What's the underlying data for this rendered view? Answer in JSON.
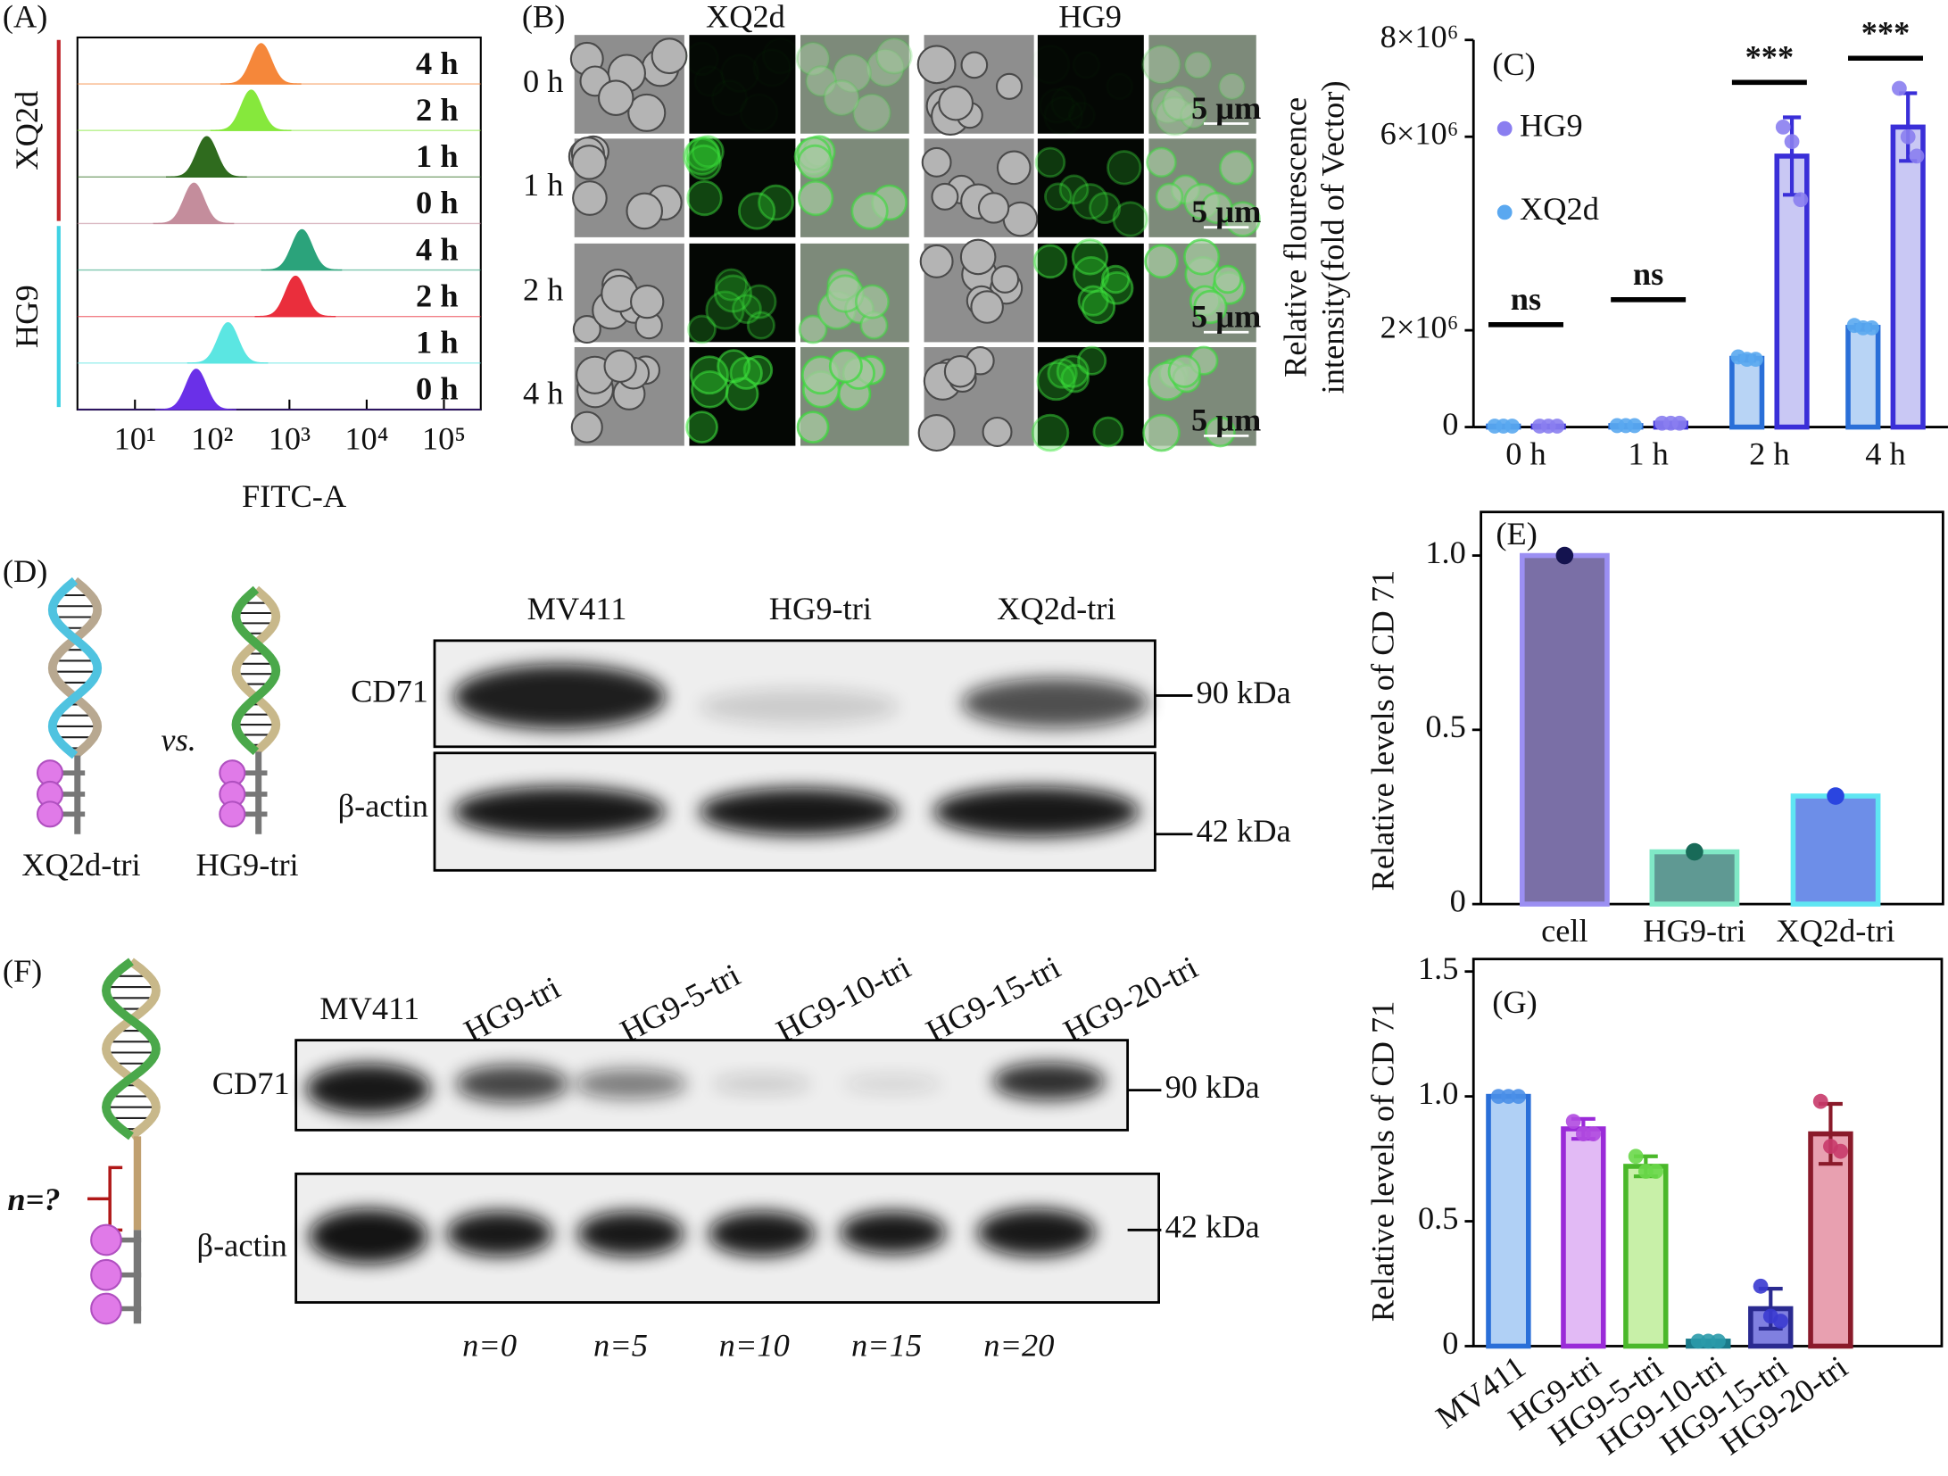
{
  "chart_data": [
    {
      "type": "flow-histogram",
      "panel_label": "(A)",
      "xlabel": "FITC-A",
      "xlog": true,
      "xlim": [
        1.8,
        300000
      ],
      "xticks": [
        {
          "value": 10,
          "label": "10¹"
        },
        {
          "value": 100,
          "label": "10²"
        },
        {
          "value": 1000,
          "label": "10³"
        },
        {
          "value": 10000,
          "label": "10⁴"
        },
        {
          "value": 100000,
          "label": "10⁵"
        }
      ],
      "groups": [
        {
          "name": "XQ2d",
          "color": "#c0262b",
          "series": [
            {
              "name": "4 h",
              "color": "#f5873a",
              "peak": 430
            },
            {
              "name": "2 h",
              "color": "#86e83c",
              "peak": 320
            },
            {
              "name": "1 h",
              "color": "#2f6b1e",
              "peak": 85
            },
            {
              "name": "0 h",
              "color": "#c48d9c",
              "peak": 58
            }
          ]
        },
        {
          "name": "HG9",
          "color": "#3fd2e4",
          "series": [
            {
              "name": "4 h",
              "color": "#2ba37b",
              "peak": 1450
            },
            {
              "name": "2 h",
              "color": "#ea2e3c",
              "peak": 1200
            },
            {
              "name": "1 h",
              "color": "#5be6e2",
              "peak": 160
            },
            {
              "name": "0 h",
              "color": "#6a30e8",
              "peak": 62
            }
          ]
        }
      ]
    },
    {
      "type": "bar",
      "panel_label": "(C)",
      "ylabel": [
        "Relative flourescence",
        "intensity(fold of Vector)"
      ],
      "categories": [
        "0 h",
        "1 h",
        "2 h",
        "4 h"
      ],
      "ylim": [
        0,
        8000000
      ],
      "yticks": [
        0,
        {
          "value": 2000000,
          "label": "2×10⁶"
        },
        {
          "value": 6000000,
          "label": "6×10⁶"
        },
        {
          "value": 8000000,
          "label": "8×10⁶"
        }
      ],
      "series": [
        {
          "name": "HG9",
          "color": "#c9c8f4",
          "edge": "#3a2fd8",
          "point_color": "#8a7ef0",
          "values": [
            20000,
            80000,
            5600000,
            6200000
          ],
          "errors": [
            0,
            0,
            800000,
            700000
          ],
          "points": [
            [
              20000,
              20000,
              20000
            ],
            [
              80000,
              80000,
              80000
            ],
            [
              6200000,
              5900000,
              4700000
            ],
            [
              7000000,
              6000000,
              5600000
            ]
          ]
        },
        {
          "name": "XQ2d",
          "color": "#b8d4f5",
          "edge": "#2a6fd8",
          "point_color": "#5aa8f0",
          "values": [
            20000,
            30000,
            1420000,
            2060000
          ],
          "errors": [
            0,
            0,
            50000,
            50000
          ],
          "points": [
            [
              20000,
              20000,
              20000
            ],
            [
              30000,
              30000,
              30000
            ],
            [
              1450000,
              1400000,
              1400000
            ],
            [
              2100000,
              2050000,
              2050000
            ]
          ]
        }
      ],
      "significance": [
        "ns",
        "ns",
        "***",
        "***"
      ]
    },
    {
      "type": "bar",
      "panel_label": "(E)",
      "ylabel": "Relative levels of CD 71",
      "categories": [
        "cell",
        "HG9-tri",
        "XQ2d-tri"
      ],
      "values": [
        1.0,
        0.15,
        0.31
      ],
      "colors": [
        "#7a6fa6",
        "#5f9993",
        "#6d8ee8"
      ],
      "edge_colors": [
        "#9b8ff2",
        "#80e8c6",
        "#5fe6f2"
      ],
      "point_colors": [
        "#14134f",
        "#186a58",
        "#2a45e0"
      ],
      "ylim": [
        0,
        1.125
      ],
      "yticks": [
        0,
        0.5,
        {
          "value": 1,
          "label": "1.0"
        }
      ]
    },
    {
      "type": "bar",
      "panel_label": "(G)",
      "ylabel": "Relative levels of CD 71",
      "categories": [
        "MV411",
        "HG9-tri",
        "HG9-5-tri",
        "HG9-10-tri",
        "HG9-15-tri",
        "HG9-20-tri"
      ],
      "values": [
        1.0,
        0.87,
        0.72,
        0.02,
        0.15,
        0.85
      ],
      "errors": [
        0,
        0.04,
        0.04,
        0,
        0.08,
        0.12
      ],
      "points": [
        [
          1.0,
          1.0,
          1.0
        ],
        [
          0.9,
          0.85,
          0.85
        ],
        [
          0.76,
          0.7,
          0.7
        ],
        [
          0.02,
          0.02,
          0.02
        ],
        [
          0.24,
          0.12,
          0.1
        ],
        [
          0.98,
          0.8,
          0.78
        ]
      ],
      "colors": [
        "#b0d0f5",
        "#e2baf5",
        "#c8f0a8",
        "#70c0d8",
        "#8080e0",
        "#e8a0b0"
      ],
      "edge_colors": [
        "#2a6fd8",
        "#9a2ad8",
        "#4ab82a",
        "#1a7a8a",
        "#2a2a90",
        "#8a1a2a"
      ],
      "point_colors": [
        "#4a8fe8",
        "#b04ae0",
        "#6ad84a",
        "#2a9aaa",
        "#3a3ad0",
        "#c83a6a"
      ],
      "ylim": [
        0,
        1.5
      ],
      "yticks": [
        0,
        0.5,
        {
          "value": 1,
          "label": "1.0"
        },
        1.5
      ]
    }
  ],
  "panel_b": {
    "label": "(B)",
    "columns": [
      "XQ2d",
      "HG9"
    ],
    "rows": [
      "0 h",
      "1 h",
      "2 h",
      "4 h"
    ],
    "scale_bar": "5 μm"
  },
  "panel_d": {
    "label": "(D)",
    "constructs": [
      "XQ2d-tri",
      "HG9-tri"
    ],
    "versus": "vs.",
    "lanes": [
      "MV411",
      "HG9-tri",
      "XQ2d-tri"
    ],
    "blots": [
      "CD71",
      "β-actin"
    ],
    "markers": [
      "90 kDa",
      "42 kDa"
    ]
  },
  "panel_f": {
    "label": "(F)",
    "linker": "n=?",
    "lanes": [
      "MV411",
      "HG9-tri",
      "HG9-5-tri",
      "HG9-10-tri",
      "HG9-15-tri",
      "HG9-20-tri"
    ],
    "blots": [
      "CD71",
      "β-actin"
    ],
    "markers": [
      "90 kDa",
      "42 kDa"
    ],
    "linker_lengths": [
      "n=0",
      "n=5",
      "n=10",
      "n=15",
      "n=20"
    ]
  }
}
